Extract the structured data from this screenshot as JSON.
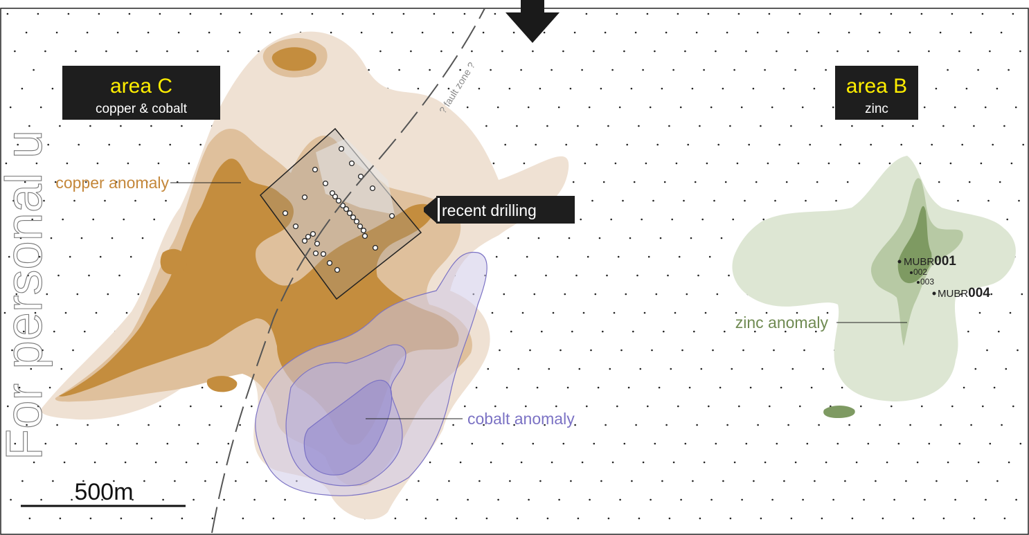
{
  "watermark": "For personal u",
  "area_c": {
    "title": "area C",
    "subtitle": "copper & cobalt"
  },
  "area_b": {
    "title": "area B",
    "subtitle": "zinc"
  },
  "labels": {
    "copper": "copper anomaly",
    "cobalt": "cobalt anomaly",
    "zinc": "zinc anomaly",
    "drilling": "recent drilling",
    "fault": "? fault   zone ?",
    "scale": "500m"
  },
  "drillholes": {
    "h001_prefix": "MUBR",
    "h001_num": "001",
    "h002": "002",
    "h003": "003",
    "h004_prefix": "MUBR",
    "h004_num": "004"
  },
  "colors": {
    "copper_light": "#efe1d3",
    "copper_mid": "#dfc09c",
    "copper_dark": "#c48d3e",
    "copper_text": "#c4873a",
    "cobalt": "#7b72c4",
    "cobalt_fill": "#cfcbe8",
    "zinc_light": "#dde6d3",
    "zinc_mid": "#b7c9a4",
    "zinc_dark": "#7e9a62",
    "zinc_text": "#6f8a52",
    "label_bg": "#1e1e1e",
    "label_title": "#ffee00"
  }
}
